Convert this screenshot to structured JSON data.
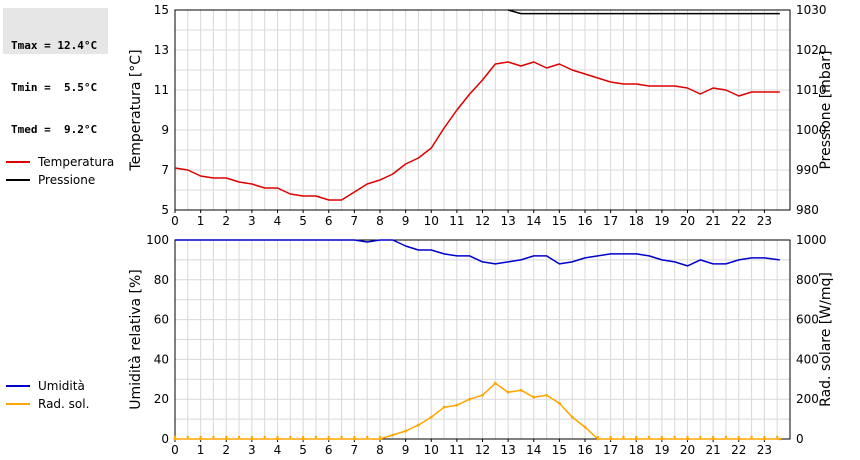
{
  "stats": {
    "tmax": "Tmax = 12.4°C",
    "tmin": "Tmin =  5.5°C",
    "tmed": "Tmed =  9.2°C"
  },
  "chart_data": [
    {
      "type": "line",
      "xlim": [
        0,
        24
      ],
      "x_ticks": [
        "0",
        "1",
        "2",
        "3",
        "4",
        "5",
        "6",
        "7",
        "8",
        "9",
        "10",
        "11",
        "12",
        "13",
        "14",
        "15",
        "16",
        "17",
        "18",
        "19",
        "20",
        "21",
        "22",
        "23"
      ],
      "ylabel_left": "Temperatura [°C]",
      "ylabel_right": "Pressione [mbar]",
      "ylim_left": [
        5,
        15
      ],
      "ylim_right": [
        980,
        1030
      ],
      "yticks_left": [
        "5",
        "7",
        "9",
        "11",
        "13",
        "15"
      ],
      "yticks_right": [
        "980",
        "990",
        "1000",
        "1010",
        "1020",
        "1030"
      ],
      "grid": true,
      "legend_position": "left-outside",
      "series": [
        {
          "name": "Temperatura",
          "axis": "left",
          "color": "#dd0000",
          "x": [
            0,
            0.5,
            1,
            1.5,
            2,
            2.5,
            3,
            3.5,
            4,
            4.5,
            5,
            5.5,
            6,
            6.5,
            7,
            7.5,
            8,
            8.5,
            9,
            9.5,
            10,
            10.5,
            11,
            11.5,
            12,
            12.5,
            13,
            13.5,
            14,
            14.5,
            15,
            15.5,
            16,
            16.5,
            17,
            17.5,
            18,
            18.5,
            19,
            19.5,
            20,
            20.5,
            21,
            21.5,
            22,
            22.5,
            23,
            23.6
          ],
          "values": [
            7.1,
            7.0,
            6.7,
            6.6,
            6.6,
            6.4,
            6.3,
            6.1,
            6.1,
            5.8,
            5.7,
            5.7,
            5.5,
            5.5,
            5.9,
            6.3,
            6.5,
            6.8,
            7.3,
            7.6,
            8.1,
            9.1,
            10.0,
            10.8,
            11.5,
            12.3,
            12.4,
            12.2,
            12.4,
            12.1,
            12.3,
            12.0,
            11.8,
            11.6,
            11.4,
            11.3,
            11.3,
            11.2,
            11.2,
            11.2,
            11.1,
            10.8,
            11.1,
            11.0,
            10.7,
            10.9,
            10.9,
            10.9
          ]
        },
        {
          "name": "Pressione",
          "axis": "right",
          "color": "#000000",
          "x": [
            13.0,
            13.5,
            14,
            15,
            16,
            17,
            18,
            19,
            20,
            21,
            22,
            23,
            23.6
          ],
          "values": [
            1030.2,
            1029.1,
            1029.1,
            1029.1,
            1029.1,
            1029.1,
            1029.1,
            1029.1,
            1029.1,
            1029.1,
            1029.1,
            1029.1,
            1029.1
          ]
        }
      ]
    },
    {
      "type": "line",
      "xlim": [
        0,
        24
      ],
      "x_ticks": [
        "0",
        "1",
        "2",
        "3",
        "4",
        "5",
        "6",
        "7",
        "8",
        "9",
        "10",
        "11",
        "12",
        "13",
        "14",
        "15",
        "16",
        "17",
        "18",
        "19",
        "20",
        "21",
        "22",
        "23"
      ],
      "ylabel_left": "Umidità relativa [%]",
      "ylabel_right": "Rad. solare [W/mq]",
      "ylim_left": [
        0,
        100
      ],
      "ylim_right": [
        0,
        1000
      ],
      "yticks_left": [
        "0",
        "20",
        "40",
        "60",
        "80",
        "100"
      ],
      "yticks_right": [
        "0",
        "200",
        "400",
        "600",
        "800",
        "1000"
      ],
      "grid": true,
      "legend_position": "left-outside",
      "series": [
        {
          "name": "Umidità",
          "axis": "left",
          "color": "#0000cc",
          "x": [
            0,
            1,
            2,
            3,
            4,
            5,
            6,
            7,
            7.5,
            8,
            8.5,
            9,
            9.5,
            10,
            10.5,
            11,
            11.5,
            12,
            12.5,
            13,
            13.5,
            14,
            14.5,
            15,
            15.5,
            16,
            16.5,
            17,
            17.5,
            18,
            18.5,
            19,
            19.5,
            20,
            20.5,
            21,
            21.5,
            22,
            22.5,
            23,
            23.6
          ],
          "values": [
            100,
            100,
            100,
            100,
            100,
            100,
            100,
            100,
            99,
            100,
            100,
            97,
            95,
            95,
            93,
            92,
            92,
            89,
            88,
            89,
            90,
            92,
            92,
            88,
            89,
            91,
            92,
            93,
            93,
            93,
            92,
            90,
            89,
            87,
            90,
            88,
            88,
            90,
            91,
            91,
            90
          ]
        },
        {
          "name": "Rad. sol.",
          "axis": "right",
          "color": "#ffa500",
          "x": [
            0,
            1,
            2,
            3,
            4,
            5,
            6,
            7,
            8,
            8.5,
            9,
            9.5,
            10,
            10.5,
            11,
            11.5,
            12,
            12.5,
            13,
            13.5,
            14,
            14.5,
            15,
            15.5,
            16,
            16.5,
            17,
            18,
            19,
            20,
            21,
            22,
            23,
            23.6
          ],
          "values": [
            0,
            0,
            0,
            0,
            0,
            0,
            0,
            0,
            0,
            20,
            40,
            70,
            110,
            160,
            170,
            200,
            220,
            280,
            235,
            245,
            210,
            220,
            180,
            110,
            60,
            0,
            0,
            0,
            0,
            0,
            0,
            0,
            0,
            0
          ]
        }
      ]
    }
  ]
}
